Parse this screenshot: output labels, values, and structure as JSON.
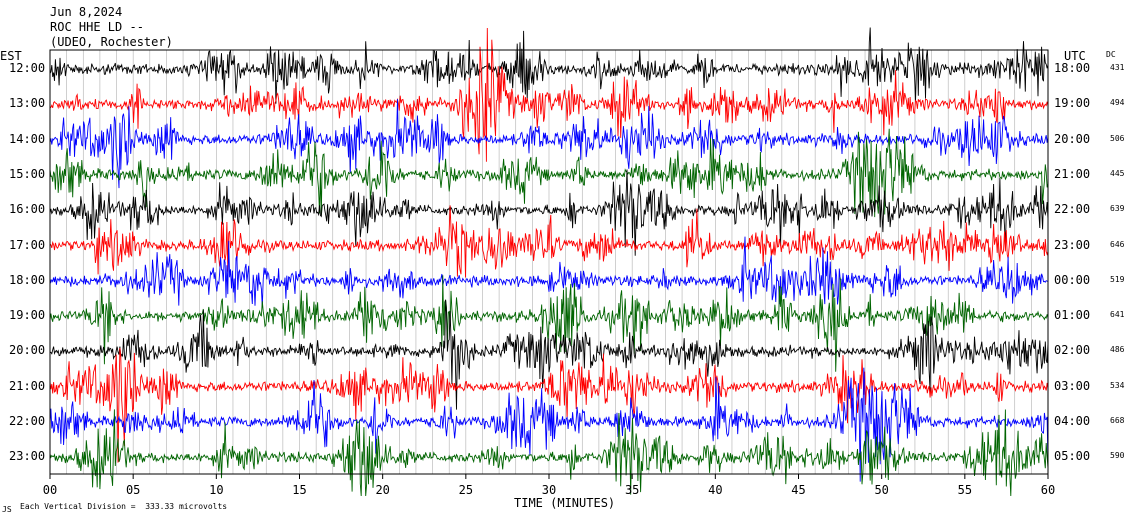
{
  "header": {
    "date": "Jun 8,2024",
    "station": "ROC HHE LD --",
    "network": "(UDEO, Rochester)"
  },
  "labels": {
    "left_zone": "EST",
    "right_zone": "UTC",
    "dc_header": "DC",
    "xlabel": "TIME (MINUTES)",
    "footer_mark": "JS",
    "scale_note": "Each Vertical Division =  333.33 microvolts"
  },
  "colors": {
    "black": "#000000",
    "red": "#ff0000",
    "blue": "#0000ff",
    "green": "#006400"
  },
  "chart_data": {
    "type": "line",
    "title": "Jun 8,2024 ROC HHE LD -- (UDEO, Rochester)",
    "xlabel": "TIME (MINUTES)",
    "xlim": [
      0,
      60
    ],
    "x_ticks": [
      "00",
      "05",
      "10",
      "15",
      "20",
      "25",
      "30",
      "35",
      "40",
      "45",
      "50",
      "55",
      "60"
    ],
    "grid": true,
    "rows": [
      {
        "est": "12:00",
        "utc": "18:00",
        "dc": "431",
        "color": "black"
      },
      {
        "est": "13:00",
        "utc": "19:00",
        "dc": "494",
        "color": "red"
      },
      {
        "est": "14:00",
        "utc": "20:00",
        "dc": "506",
        "color": "blue"
      },
      {
        "est": "15:00",
        "utc": "21:00",
        "dc": "445",
        "color": "green"
      },
      {
        "est": "16:00",
        "utc": "22:00",
        "dc": "639",
        "color": "black"
      },
      {
        "est": "17:00",
        "utc": "23:00",
        "dc": "646",
        "color": "red"
      },
      {
        "est": "18:00",
        "utc": "00:00",
        "dc": "519",
        "color": "blue"
      },
      {
        "est": "19:00",
        "utc": "01:00",
        "dc": "641",
        "color": "green"
      },
      {
        "est": "20:00",
        "utc": "02:00",
        "dc": "486",
        "color": "black"
      },
      {
        "est": "21:00",
        "utc": "03:00",
        "dc": "534",
        "color": "red"
      },
      {
        "est": "22:00",
        "utc": "04:00",
        "dc": "668",
        "color": "blue"
      },
      {
        "est": "23:00",
        "utc": "05:00",
        "dc": "590",
        "color": "green"
      }
    ]
  }
}
